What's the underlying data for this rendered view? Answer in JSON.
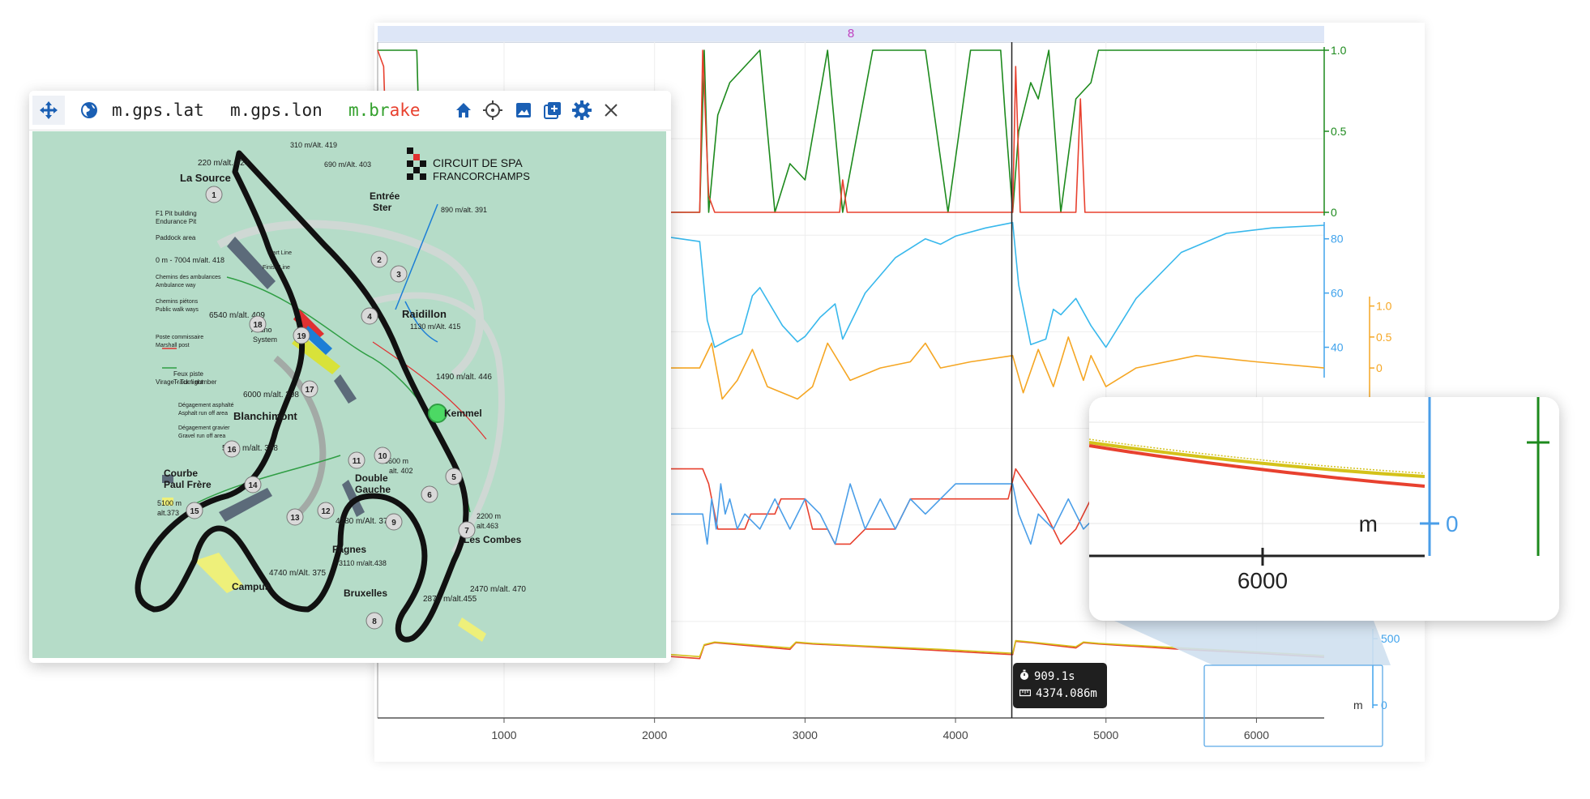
{
  "lap_marker": "8",
  "toolbar": {
    "channels": [
      {
        "label": "m.gps.lat",
        "color": "#222222"
      },
      {
        "label": "m.gps.lon",
        "color": "#222222"
      },
      {
        "label": "m.brake",
        "color": "#33a02c",
        "color2": "#e8412f"
      }
    ],
    "icons": [
      "move-icon",
      "globe-icon",
      "home-icon",
      "crosshair-icon",
      "image-icon",
      "add-layer-icon",
      "gear-icon",
      "close-icon"
    ]
  },
  "map": {
    "logo_line1": "CIRCUIT DE SPA",
    "logo_line2": "FRANCORCHAMPS",
    "labels": [
      {
        "t": "220 m/alt. 424"
      },
      {
        "t": "310 m/Alt. 419"
      },
      {
        "t": "690 m/Alt. 403"
      },
      {
        "t": "La Source"
      },
      {
        "t": "Entrée"
      },
      {
        "t": "Ster"
      },
      {
        "t": "890 m/alt. 391"
      },
      {
        "t": "F1 Pit building"
      },
      {
        "t": "Endurance Pit"
      },
      {
        "t": "Paddock area"
      },
      {
        "t": "0 m - 7004 m/alt. 418"
      },
      {
        "t": "Chemins des ambulances"
      },
      {
        "t": "Ambulance way"
      },
      {
        "t": "Chemins piétons"
      },
      {
        "t": "Public walk ways"
      },
      {
        "t": "6540 m/alt. 409"
      },
      {
        "t": "Raidillon"
      },
      {
        "t": "1130 m/Alt. 415"
      },
      {
        "t": "Alfano"
      },
      {
        "t": "System"
      },
      {
        "t": "Poste commissaire"
      },
      {
        "t": "Marshall post"
      },
      {
        "t": "Virage - Turn number"
      },
      {
        "t": "1490 m/alt. 446"
      },
      {
        "t": "Feux piste"
      },
      {
        "t": "Track light"
      },
      {
        "t": "6000 m/alt. 398"
      },
      {
        "t": "Kemmel"
      },
      {
        "t": "Dégagement asphalté"
      },
      {
        "t": "Asphalt run off area"
      },
      {
        "t": "Blanchimont"
      },
      {
        "t": "Dégagement gravier"
      },
      {
        "t": "Gravel run off area"
      },
      {
        "t": "5700 m/alt. 388"
      },
      {
        "t": "3600 m"
      },
      {
        "t": "alt. 402"
      },
      {
        "t": "Courbe"
      },
      {
        "t": "Paul Frère"
      },
      {
        "t": "Double"
      },
      {
        "t": "Gauche"
      },
      {
        "t": "5100 m"
      },
      {
        "t": "alt.373"
      },
      {
        "t": "2200 m"
      },
      {
        "t": "alt.463"
      },
      {
        "t": "4280 m/Alt. 377"
      },
      {
        "t": "Les Combes"
      },
      {
        "t": "Fagnes"
      },
      {
        "t": "3110 m/alt.438"
      },
      {
        "t": "4740 m/Alt. 375"
      },
      {
        "t": "Campus"
      },
      {
        "t": "2470 m/alt. 470"
      },
      {
        "t": "Bruxelles"
      },
      {
        "t": "2870 m/alt.455"
      },
      {
        "t": "Start Line"
      },
      {
        "t": "Finish Line"
      }
    ],
    "turns": [
      {
        "n": "1"
      },
      {
        "n": "2"
      },
      {
        "n": "3"
      },
      {
        "n": "4"
      },
      {
        "n": "5"
      },
      {
        "n": "6"
      },
      {
        "n": "7"
      },
      {
        "n": "8"
      },
      {
        "n": "9"
      },
      {
        "n": "10"
      },
      {
        "n": "11"
      },
      {
        "n": "12"
      },
      {
        "n": "13"
      },
      {
        "n": "14"
      },
      {
        "n": "15"
      },
      {
        "n": "16"
      },
      {
        "n": "17"
      },
      {
        "n": "18"
      },
      {
        "n": "19"
      }
    ]
  },
  "chart_data": {
    "type": "line",
    "x_axis": {
      "ticks": [
        "1000",
        "2000",
        "3000",
        "4000",
        "5000",
        "6000"
      ],
      "range": [
        160,
        6450
      ]
    },
    "panels": [
      {
        "name": "brake",
        "y_ticks": [
          "1.0",
          "0.5",
          "0"
        ],
        "color": "#1d8a1d",
        "series": [
          {
            "color": "#1d8a1d",
            "x": [
              160,
              420,
              450,
              2300,
              2330,
              2360,
              2420,
              2500,
              2700,
              2800,
              2900,
              3000,
              3150,
              3250,
              3450,
              3800,
              3950,
              4100,
              4300,
              4330,
              4380,
              4420,
              4500,
              4550,
              4620,
              4700,
              4800,
              4900,
              4950,
              6450
            ],
            "y": [
              1.0,
              1.0,
              0,
              0,
              1.0,
              0,
              0.6,
              0.8,
              1.0,
              0,
              0.3,
              0.2,
              1.0,
              0,
              1.0,
              1.0,
              0,
              1.0,
              1.0,
              0.6,
              0,
              0.5,
              0.8,
              0.7,
              1.0,
              0,
              0.7,
              0.8,
              1.0,
              1.0
            ]
          },
          {
            "color": "#e8412f",
            "x": [
              160,
              200,
              230,
              2300,
              2320,
              2360,
              2400,
              3230,
              3250,
              3280,
              4380,
              4400,
              4430,
              4800,
              4830,
              4860,
              6450
            ],
            "y": [
              1.0,
              0.9,
              0,
              0,
              1.0,
              0.1,
              0,
              0,
              0.2,
              0,
              0,
              0.9,
              0,
              0,
              0.7,
              0,
              0
            ]
          }
        ]
      },
      {
        "name": "speed",
        "y_ticks": [
          "80",
          "60",
          "40"
        ],
        "color": "#40a3ec",
        "series": [
          {
            "color": "#38b8ec",
            "x": [
              1570,
              1800,
              2050,
              2300,
              2350,
              2400,
              2500,
              2580,
              2650,
              2700,
              2850,
              2950,
              3000,
              3100,
              3200,
              3250,
              3400,
              3600,
              3800,
              3900,
              4000,
              4200,
              4380,
              4420,
              4500,
              4600,
              4650,
              4700,
              4800,
              4900,
              5000,
              5200,
              5500,
              5800,
              6100,
              6450
            ],
            "y": [
              80,
              78,
              81,
              79,
              50,
              40,
              43,
              45,
              59,
              62,
              48,
              42,
              44,
              51,
              56,
              43,
              60,
              73,
              80,
              78,
              81,
              84,
              86,
              63,
              41,
              43,
              54,
              52,
              58,
              48,
              40,
              58,
              75,
              82,
              84,
              85
            ]
          }
        ]
      },
      {
        "name": "throttle",
        "y_ticks": [
          "1.0",
          "0.5",
          "0"
        ],
        "color": "#f5a623",
        "series": [
          {
            "color": "#f5a623",
            "x": [
              1570,
              2300,
              2380,
              2450,
              2550,
              2650,
              2750,
              2950,
              3050,
              3150,
              3300,
              3500,
              3700,
              3800,
              3900,
              4100,
              4380,
              4450,
              4550,
              4650,
              4750,
              4850,
              4900,
              5000,
              5200,
              5600,
              6000,
              6450
            ],
            "y": [
              0,
              0,
              0.4,
              -0.5,
              -0.2,
              0.3,
              -0.3,
              -0.5,
              -0.3,
              0.4,
              -0.2,
              0,
              0.1,
              0.4,
              0,
              0.1,
              0.2,
              -0.4,
              0.3,
              -0.3,
              0.5,
              -0.2,
              0.2,
              -0.3,
              0,
              0.2,
              0.1,
              0
            ]
          }
        ]
      },
      {
        "name": "gear",
        "y_ticks": [],
        "color": "#40a3ec",
        "series": [
          {
            "color": "#e8412f",
            "x": [
              1570,
              2320,
              2360,
              2420,
              2600,
              2640,
              2800,
              2840,
              3000,
              3050,
              3150,
              3200,
              3300,
              3400,
              3600,
              3700,
              3900,
              4350,
              4400,
              4600,
              4650,
              4700,
              4800,
              4900,
              6450
            ],
            "y": [
              6,
              6,
              5,
              2,
              2,
              3,
              3,
              4,
              4,
              2,
              2,
              1,
              1,
              2,
              2,
              4,
              4,
              4,
              6,
              3,
              2,
              1,
              2,
              4,
              4
            ]
          },
          {
            "color": "#4a9ee8",
            "x": [
              1570,
              2320,
              2350,
              2380,
              2410,
              2440,
              2470,
              2500,
              2550,
              2600,
              2700,
              2800,
              2900,
              3000,
              3100,
              3200,
              3300,
              3400,
              3500,
              3600,
              3700,
              3800,
              3900,
              4000,
              4100,
              4200,
              4300,
              4380,
              4420,
              4460,
              4500,
              4550,
              4650,
              4750,
              4850,
              4950,
              5050,
              5150,
              6450
            ],
            "y": [
              3,
              3,
              1,
              4,
              2,
              5,
              3,
              4,
              2,
              3,
              2,
              4,
              2,
              4,
              3,
              1,
              5,
              2,
              4,
              2,
              4,
              3,
              4,
              5,
              5,
              5,
              5,
              5,
              3,
              2,
              1,
              3,
              2,
              4,
              2,
              3,
              3,
              4,
              4
            ]
          }
        ]
      },
      {
        "name": "distance",
        "y_ticks": [
          "500",
          "0"
        ],
        "y_unit": "m",
        "color": "#40a3ec",
        "series": [
          {
            "color": "#e8412f",
            "x": [
              160,
              600,
              1200,
              1800,
              2300,
              2330,
              2400,
              2900,
              2940,
              3050,
              3400,
              3900,
              4380,
              4400,
              4500,
              4800,
              4850,
              4950,
              5500,
              6000,
              6450
            ],
            "y": [
              500,
              470,
              430,
              390,
              350,
              450,
              470,
              420,
              470,
              460,
              440,
              410,
              380,
              480,
              470,
              430,
              470,
              460,
              420,
              390,
              360
            ]
          },
          {
            "color": "#d4c21a",
            "x": [
              160,
              600,
              1200,
              1800,
              2300,
              2330,
              2400,
              2900,
              2940,
              3050,
              3400,
              3900,
              4380,
              4400,
              4500,
              4800,
              4850,
              4950,
              5500,
              6000,
              6450
            ],
            "y": [
              500,
              480,
              445,
              405,
              365,
              455,
              475,
              430,
              475,
              465,
              445,
              420,
              390,
              485,
              475,
              440,
              475,
              465,
              430,
              400,
              372
            ]
          }
        ]
      }
    ],
    "cursor": {
      "x": 4374.086
    },
    "tooltip": {
      "time": "909.1s",
      "distance": "4374.086m"
    },
    "zoom": {
      "x_label": "6000",
      "y_label": "0",
      "unit": "m"
    }
  }
}
